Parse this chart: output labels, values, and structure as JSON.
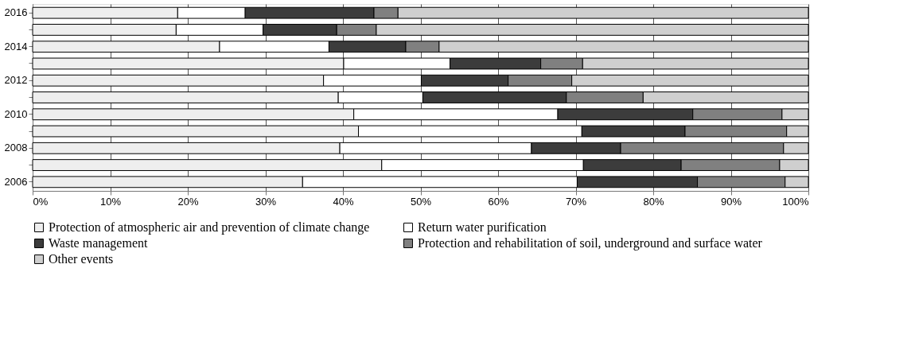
{
  "chart_data": {
    "type": "bar",
    "orientation": "horizontal",
    "stacked": true,
    "categories": [
      "2016",
      null,
      "2014",
      null,
      "2012",
      null,
      "2010",
      null,
      "2008",
      null,
      "2006"
    ],
    "series": [
      {
        "name": "Protection of atmospheric air and prevention of climate change",
        "color": "#eeeeee",
        "values": [
          18.7,
          18.5,
          24.1,
          40.1,
          37.5,
          39.4,
          41.4,
          42.0,
          39.6,
          45.0,
          34.8
        ]
      },
      {
        "name": "Return water purification",
        "color": "#ffffff",
        "values": [
          8.7,
          11.2,
          14.1,
          13.7,
          12.6,
          10.9,
          26.3,
          28.8,
          24.7,
          26.0,
          35.4
        ]
      },
      {
        "name": "Waste management",
        "color": "#3c3c3c",
        "values": [
          16.6,
          9.5,
          9.9,
          11.7,
          11.2,
          18.5,
          17.4,
          13.3,
          11.5,
          12.6,
          15.5
        ]
      },
      {
        "name": "Protection and rehabilitation of soil, underground and surface water",
        "color": "#808080",
        "values": [
          3.1,
          5.1,
          4.3,
          5.4,
          8.2,
          9.9,
          11.5,
          13.1,
          21.0,
          12.7,
          11.3
        ]
      },
      {
        "name": "Other events",
        "color": "#cfcfcf",
        "values": [
          52.9,
          55.7,
          47.6,
          29.1,
          30.5,
          21.3,
          3.4,
          2.8,
          3.2,
          3.7,
          3.0
        ]
      }
    ],
    "xlim": [
      0,
      100
    ],
    "xticks": [
      {
        "value": 0,
        "label": "0%"
      },
      {
        "value": 10,
        "label": "10%"
      },
      {
        "value": 20,
        "label": "20%"
      },
      {
        "value": 30,
        "label": "30%"
      },
      {
        "value": 40,
        "label": "40%"
      },
      {
        "value": 50,
        "label": "50%"
      },
      {
        "value": 60,
        "label": "60%"
      },
      {
        "value": 70,
        "label": "70%"
      },
      {
        "value": 80,
        "label": "80%"
      },
      {
        "value": 90,
        "label": "90%"
      },
      {
        "value": 100,
        "label": "100%"
      }
    ],
    "grid": "x",
    "legend": "bottom"
  }
}
